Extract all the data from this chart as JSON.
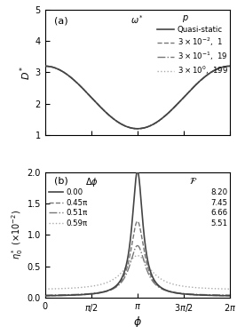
{
  "fig_width": 2.67,
  "fig_height": 3.68,
  "dpi": 100,
  "panel_a": {
    "label": "(a)",
    "ylabel": "D*",
    "ylim": [
      1,
      5
    ],
    "yticks": [
      1,
      2,
      3,
      4,
      5
    ],
    "D_mean": 2.2,
    "D_amp": 1.0,
    "curves": [
      {
        "label": "Quasi-static",
        "style": "solid",
        "color": "#444444",
        "lw": 1.2
      },
      {
        "label": "3 x 10^-2, 1",
        "style": "dashed",
        "color": "#777777",
        "lw": 1.0
      },
      {
        "label": "3 x 10^-1, 19",
        "style": "dashdot",
        "color": "#777777",
        "lw": 1.0
      },
      {
        "label": "3 x 10^0, 199",
        "style": "dotted",
        "color": "#aaaaaa",
        "lw": 1.0
      }
    ]
  },
  "panel_b": {
    "label": "(b)",
    "ylim": [
      0,
      2.0
    ],
    "yticks": [
      0.0,
      0.5,
      1.0,
      1.5,
      2.0
    ],
    "curves": [
      {
        "style": "solid",
        "color": "#444444",
        "lw": 1.2,
        "peak": 2.0,
        "gamma": 0.22,
        "base": 0.02
      },
      {
        "style": "dashed",
        "color": "#777777",
        "lw": 1.0,
        "peak": 1.2,
        "gamma": 0.28,
        "base": 0.02
      },
      {
        "style": "dashdot",
        "color": "#777777",
        "lw": 1.0,
        "peak": 0.8,
        "gamma": 0.33,
        "base": 0.03
      },
      {
        "style": "dotted",
        "color": "#aaaaaa",
        "lw": 1.0,
        "peak": 0.55,
        "gamma": 0.55,
        "base": 0.12
      }
    ],
    "dphi_labels": [
      "0.00",
      "0.45π",
      "0.51π",
      "0.59π"
    ],
    "F_labels": [
      "8.20",
      "7.45",
      "6.66",
      "5.51"
    ]
  }
}
